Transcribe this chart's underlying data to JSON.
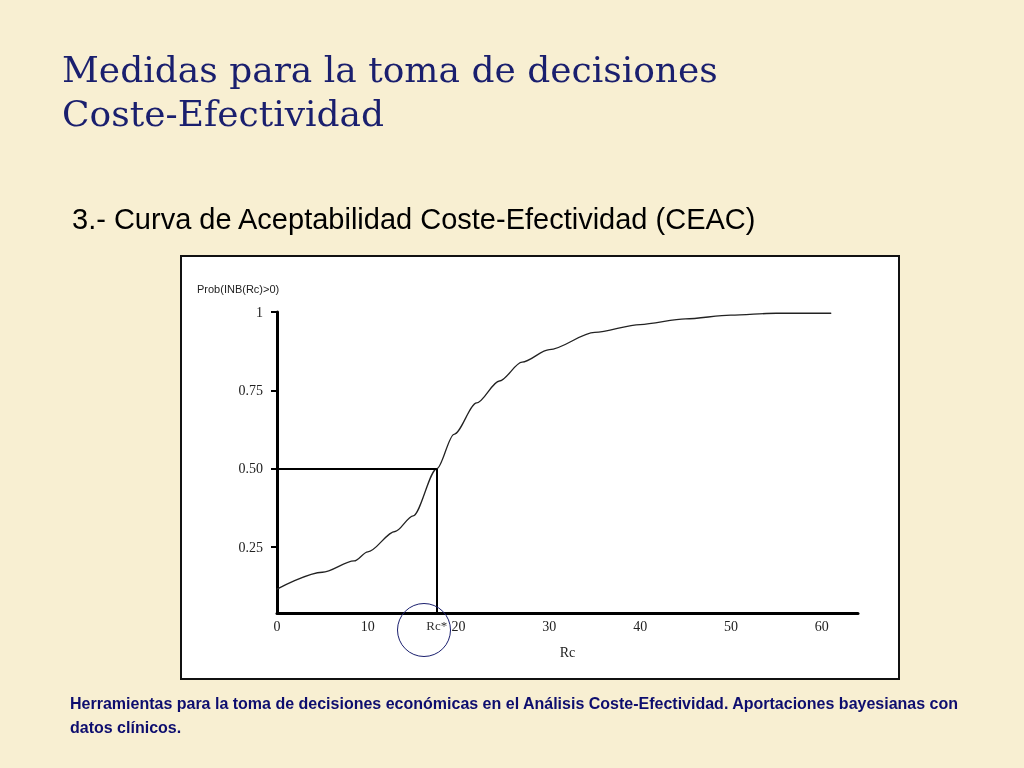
{
  "chart_data": {
    "type": "line",
    "title": "Medidas para la toma de decisiones\nCoste-Efectividad",
    "subtitle": "3.- Curva de Aceptabilidad Coste-Efectividad (CEAC)",
    "xlabel": "Rc",
    "ylabel": "Prob(INB(Rc)>0)",
    "x": [
      0,
      5,
      8.5,
      10,
      13,
      15,
      17.6,
      19.5,
      22,
      24.5,
      27,
      30,
      35,
      40,
      45,
      50,
      55,
      61
    ],
    "series": [
      {
        "color": "#222222",
        "values": [
          0.116,
          0.17,
          0.206,
          0.235,
          0.3,
          0.35,
          0.5,
          0.61,
          0.71,
          0.78,
          0.84,
          0.88,
          0.935,
          0.96,
          0.978,
          0.99,
          0.996,
          0.996
        ]
      }
    ],
    "xlim": [
      0,
      64
    ],
    "ylim": [
      0.04,
      1
    ],
    "xticks": [
      0,
      10,
      20,
      30,
      40,
      50,
      60
    ],
    "yticks": [
      {
        "value": 0.25,
        "label": "0.25"
      },
      {
        "value": 0.5,
        "label": "0.50"
      },
      {
        "value": 0.75,
        "label": "0.75"
      },
      1
    ],
    "ref_lines": [
      {
        "axis": "x",
        "value": 17.6,
        "label": "Rc*",
        "color": "#000000"
      },
      {
        "axis": "y",
        "value": 0.5,
        "label": null,
        "color": "#000000"
      }
    ],
    "annotations": [
      "Herramientas para la toma de decisiones económicas en el Análisis Coste-Efectividad. Aportaciones bayesianas con datos clínicos."
    ],
    "grid": false,
    "marker": "none",
    "line_style": "solid"
  }
}
